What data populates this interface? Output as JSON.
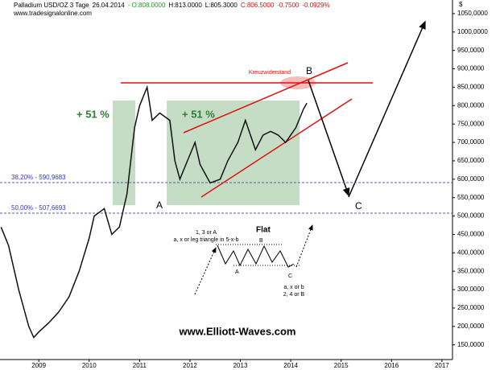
{
  "chart_data": {
    "type": "line",
    "header": [
      {
        "text": "Palladium USD/OZ 3 Tage",
        "color": "#000000"
      },
      {
        "text": "26.04.2014",
        "color": "#000000"
      },
      {
        "text": "- O:808.0000",
        "color": "#1a9a1a"
      },
      {
        "text": "H:813.0000",
        "color": "#000000"
      },
      {
        "text": "L:805.3000",
        "color": "#000000"
      },
      {
        "text": "C:806.5000",
        "color": "#d01010"
      },
      {
        "text": "-0.7500",
        "color": "#d01010"
      },
      {
        "text": "-0.0929%",
        "color": "#d01010"
      }
    ],
    "source": "www.tradesignalonline.com",
    "y_unit": "$",
    "x": [
      2008.25,
      2008.4,
      2008.6,
      2008.8,
      2008.9,
      2009.0,
      2009.2,
      2009.4,
      2009.6,
      2009.8,
      2010.0,
      2010.1,
      2010.3,
      2010.45,
      2010.6,
      2010.75,
      2010.9,
      2011.0,
      2011.15,
      2011.25,
      2011.4,
      2011.6,
      2011.7,
      2011.8,
      2011.95,
      2012.1,
      2012.2,
      2012.4,
      2012.6,
      2012.75,
      2012.95,
      2013.1,
      2013.3,
      2013.45,
      2013.6,
      2013.75,
      2013.9,
      2014.0,
      2014.1,
      2014.25,
      2014.32
    ],
    "series": [
      {
        "name": "Palladium",
        "color": "#111111",
        "values": [
          470,
          420,
          300,
          200,
          170,
          185,
          210,
          240,
          280,
          350,
          440,
          500,
          520,
          450,
          470,
          560,
          740,
          800,
          850,
          760,
          780,
          760,
          650,
          600,
          650,
          700,
          640,
          590,
          600,
          650,
          700,
          760,
          680,
          720,
          730,
          720,
          700,
          720,
          740,
          790,
          806.5
        ]
      }
    ],
    "xlim": [
      2008.23,
      2017.21
    ],
    "xticks": [
      2009,
      2010,
      2011,
      2012,
      2013,
      2014,
      2015,
      2016,
      2017
    ],
    "ylim": [
      110,
      1087
    ],
    "yticks": [
      {
        "value": 150,
        "label": "150,0000"
      },
      {
        "value": 200,
        "label": "200,0000"
      },
      {
        "value": 250,
        "label": "250,0000"
      },
      {
        "value": 300,
        "label": "300,0000"
      },
      {
        "value": 350,
        "label": "350,0000"
      },
      {
        "value": 400,
        "label": "400,0000"
      },
      {
        "value": 450,
        "label": "450,0000"
      },
      {
        "value": 500,
        "label": "500,0000"
      },
      {
        "value": 550,
        "label": "550,0000"
      },
      {
        "value": 600,
        "label": "600,0000"
      },
      {
        "value": 650,
        "label": "650,0000"
      },
      {
        "value": 700,
        "label": "700,0000"
      },
      {
        "value": 750,
        "label": "750,0000"
      },
      {
        "value": 800,
        "label": "800,0000"
      },
      {
        "value": 850,
        "label": "850,0000"
      },
      {
        "value": 900,
        "label": "900,0000"
      },
      {
        "value": 950,
        "label": "950,0000"
      },
      {
        "value": 1000,
        "label": "1000,0000"
      },
      {
        "value": 1050,
        "label": "1050,0000"
      }
    ],
    "fib_levels": [
      {
        "value": 590.9683,
        "label": "38,20% - 590,9683"
      },
      {
        "value": 507.6693,
        "label": "50,00% - 507,6693"
      }
    ],
    "annotations": {
      "resistance": "Kreuzwiderstand",
      "wave_b": "B",
      "wave_a": "A",
      "wave_c": "C",
      "gain_1": "+ 51 %",
      "gain_2": "+ 51 %",
      "flat_title": "Flat",
      "flat_top": "1, 3 or A",
      "flat_sub": "a, x or leg triangle in 5-x-b",
      "flat_b": "B",
      "flat_a": "A",
      "flat_c": "C",
      "flat_end_1": "a, x or b",
      "flat_end_2": "2, 4 or B",
      "website": "www.Elliott-Waves.com"
    }
  }
}
